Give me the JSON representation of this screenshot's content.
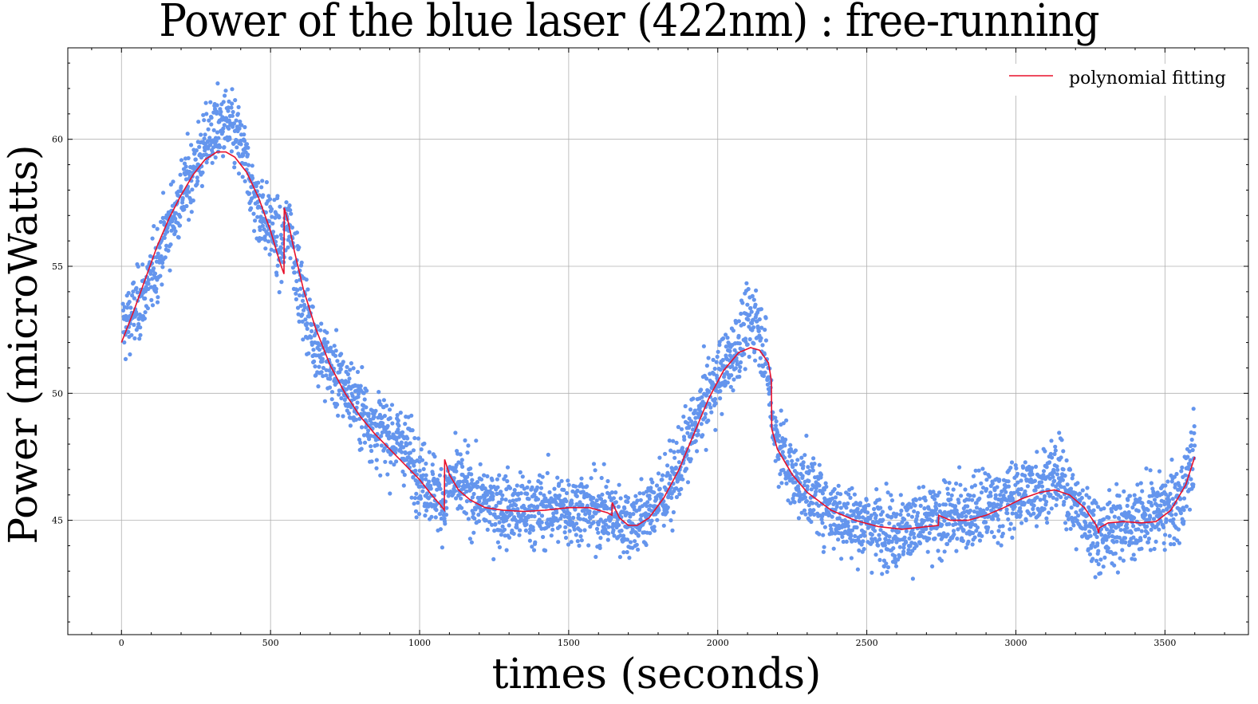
{
  "chart_data": {
    "type": "scatter",
    "title": "Power of the blue laser (422nm) : free-running",
    "xlabel": "times (seconds)",
    "ylabel": "Power (microWatts)",
    "xlim": [
      -180,
      3780
    ],
    "ylim": [
      40.5,
      63.6
    ],
    "xticks": [
      0,
      500,
      1000,
      1500,
      2000,
      2500,
      3000,
      3500
    ],
    "yticks": [
      45,
      50,
      55,
      60
    ],
    "grid": true,
    "legend_placement": "top-right",
    "colors": {
      "scatter": "#6495ED",
      "fit": "#E8102A",
      "grid": "#b0b0b0"
    },
    "series": [
      {
        "kind": "scatter",
        "description_anchor_x": [
          0,
          50,
          100,
          150,
          200,
          250,
          300,
          350,
          400,
          450,
          500,
          540,
          560,
          600,
          650,
          700,
          750,
          800,
          850,
          900,
          950,
          1000,
          1050,
          1085,
          1100,
          1150,
          1200,
          1300,
          1400,
          1500,
          1600,
          1650,
          1700,
          1750,
          1800,
          1850,
          1900,
          1950,
          2000,
          2050,
          2100,
          2130,
          2160,
          2190,
          2250,
          2300,
          2400,
          2500,
          2600,
          2700,
          2740,
          2800,
          2900,
          3000,
          3100,
          3150,
          3200,
          3280,
          3350,
          3450,
          3550,
          3600
        ],
        "description_anchor_y": [
          52.5,
          53.3,
          54.5,
          56.3,
          57.7,
          59.0,
          60.2,
          60.6,
          59.8,
          57.5,
          56.6,
          55.5,
          57.0,
          54.0,
          52.0,
          51.0,
          50.2,
          49.5,
          48.6,
          48.3,
          48.0,
          46.8,
          46.2,
          45.7,
          46.5,
          46.3,
          45.8,
          45.4,
          45.4,
          45.5,
          45.4,
          45.2,
          44.9,
          45.1,
          45.8,
          46.5,
          48.0,
          49.5,
          50.6,
          51.5,
          52.6,
          53.0,
          51.5,
          48.5,
          46.7,
          46.3,
          45.2,
          44.8,
          44.6,
          44.8,
          45.0,
          45.1,
          45.5,
          45.9,
          46.5,
          46.8,
          45.5,
          44.4,
          44.8,
          45.2,
          45.6,
          47.8
        ],
        "spread": 1.0
      },
      {
        "kind": "line",
        "name": "polynomial fitting",
        "x": [
          0,
          40,
          80,
          120,
          160,
          200,
          240,
          280,
          320,
          350,
          380,
          420,
          460,
          500,
          530,
          545,
          546,
          560,
          580,
          610,
          650,
          700,
          750,
          800,
          850,
          900,
          950,
          1000,
          1040,
          1070,
          1083,
          1084,
          1100,
          1130,
          1170,
          1220,
          1280,
          1350,
          1420,
          1500,
          1570,
          1630,
          1645,
          1646,
          1670,
          1700,
          1730,
          1770,
          1820,
          1870,
          1920,
          1970,
          2020,
          2070,
          2110,
          2140,
          2170,
          2180,
          2181,
          2200,
          2250,
          2300,
          2380,
          2460,
          2540,
          2620,
          2700,
          2740,
          2741,
          2780,
          2840,
          2900,
          2960,
          3020,
          3080,
          3130,
          3180,
          3230,
          3270,
          3278,
          3279,
          3310,
          3360,
          3420,
          3470,
          3520,
          3570,
          3600
        ],
        "y": [
          52.0,
          53.2,
          54.5,
          55.8,
          56.9,
          57.8,
          58.6,
          59.2,
          59.5,
          59.5,
          59.3,
          58.7,
          57.7,
          56.4,
          55.2,
          54.7,
          57.3,
          56.7,
          55.6,
          54.1,
          52.6,
          51.1,
          50.0,
          49.1,
          48.4,
          47.8,
          47.2,
          46.6,
          46.0,
          45.6,
          45.4,
          47.4,
          46.8,
          46.2,
          45.8,
          45.5,
          45.4,
          45.35,
          45.4,
          45.5,
          45.5,
          45.3,
          45.2,
          45.7,
          45.1,
          44.8,
          44.8,
          45.1,
          45.9,
          47.0,
          48.4,
          49.8,
          50.9,
          51.6,
          51.8,
          51.7,
          51.2,
          50.5,
          48.6,
          47.8,
          46.8,
          46.1,
          45.4,
          45.0,
          44.75,
          44.65,
          44.75,
          44.8,
          45.2,
          45.0,
          45.0,
          45.2,
          45.5,
          45.85,
          46.1,
          46.2,
          46.0,
          45.5,
          44.8,
          44.5,
          44.7,
          44.9,
          44.95,
          44.9,
          44.95,
          45.4,
          46.4,
          47.5
        ]
      }
    ]
  }
}
